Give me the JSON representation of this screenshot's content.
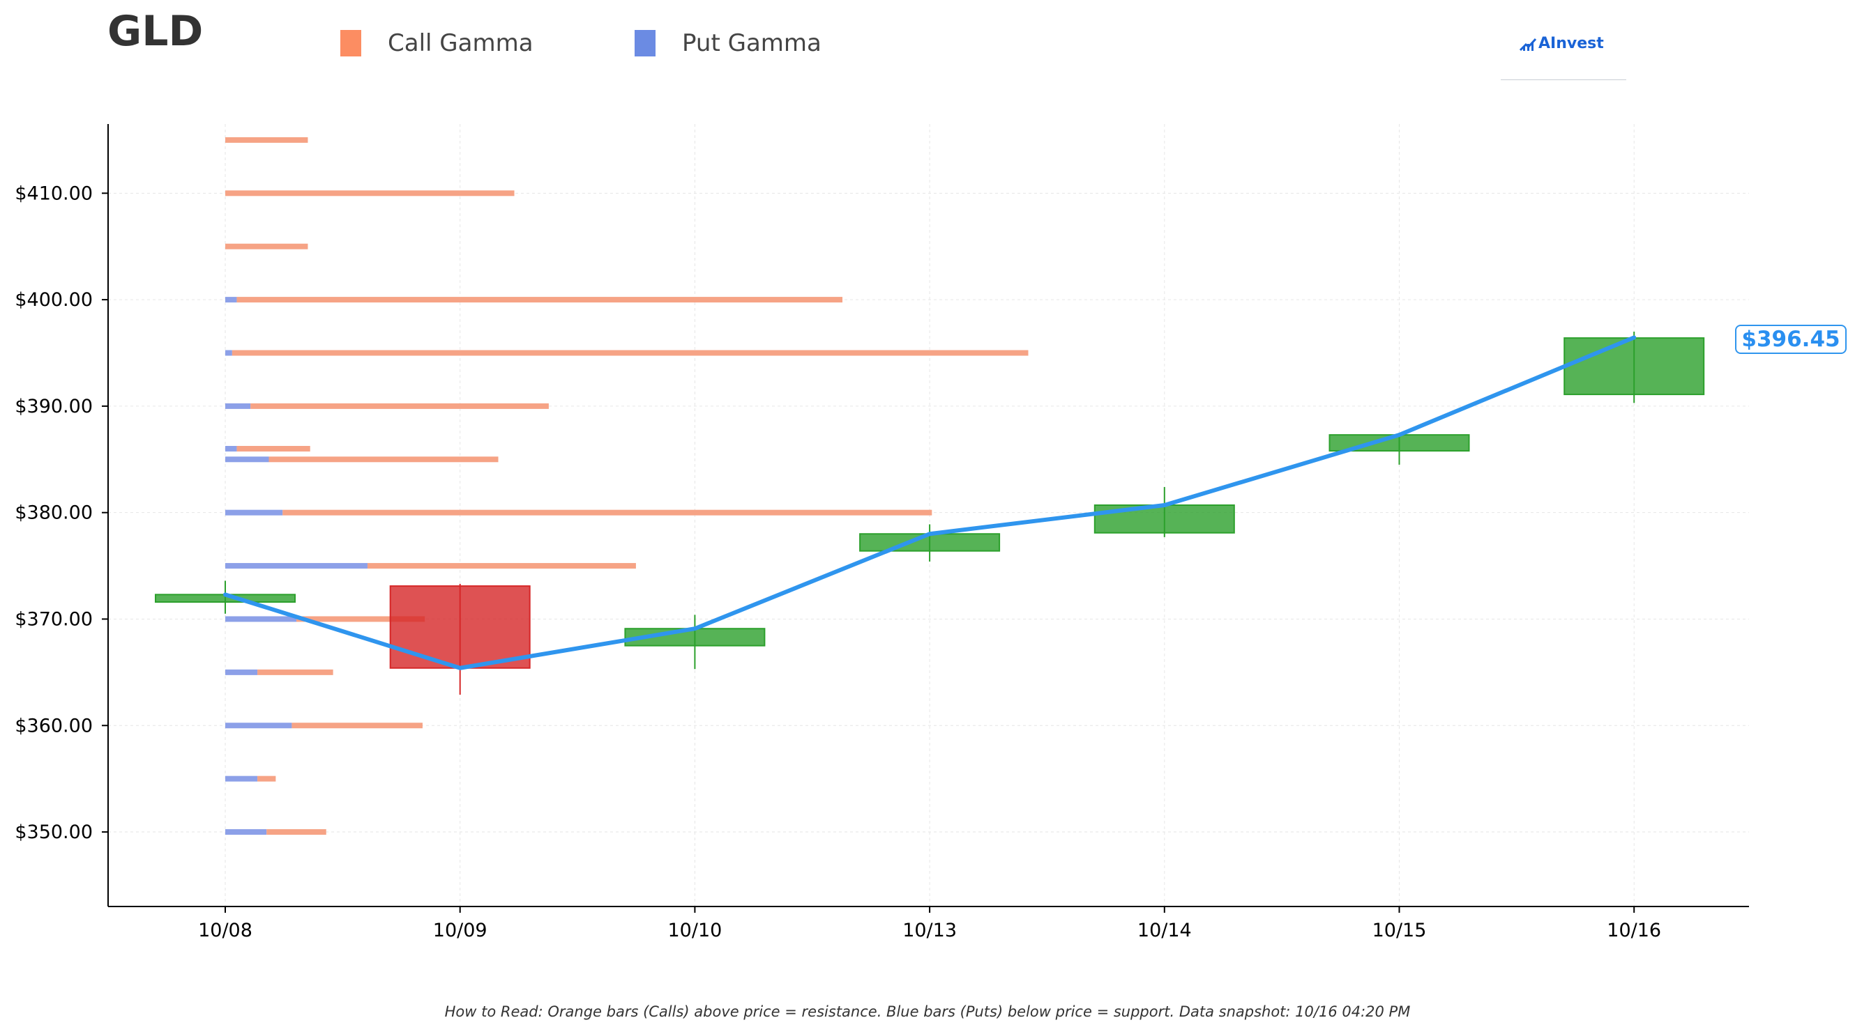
{
  "header": {
    "ticker": "GLD",
    "legend": [
      {
        "label": "Call Gamma",
        "color": "#fc8d62"
      },
      {
        "label": "Put Gamma",
        "color": "#6b8be3"
      }
    ],
    "brand": "AInvest"
  },
  "footnote": "How to Read: Orange bars (Calls) above price = resistance. Blue bars (Puts) below price = support. Data snapshot: 10/16 04:20 PM",
  "current_price_label": "$396.45",
  "colors": {
    "up": "#2ca02c",
    "down": "#d62728",
    "line": "#2f95ee",
    "call": "#f6a385",
    "put": "#8ca0e8"
  },
  "chart_data": {
    "type": "candlestick",
    "title": "GLD",
    "ylim": [
      343.0,
      416.5
    ],
    "ytick_values": [
      350,
      360,
      370,
      380,
      390,
      400,
      410
    ],
    "ytick_labels": [
      "$350.00",
      "$360.00",
      "$370.00",
      "$380.00",
      "$390.00",
      "$400.00",
      "$410.00"
    ],
    "categories": [
      "10/08",
      "10/09",
      "10/10",
      "10/13",
      "10/14",
      "10/15",
      "10/16"
    ],
    "candles": [
      {
        "date": "10/08",
        "open": 371.6,
        "high": 373.6,
        "low": 370.5,
        "close": 372.3
      },
      {
        "date": "10/09",
        "open": 373.1,
        "high": 373.3,
        "low": 362.9,
        "close": 365.4
      },
      {
        "date": "10/10",
        "open": 367.5,
        "high": 370.4,
        "low": 365.3,
        "close": 369.1
      },
      {
        "date": "10/13",
        "open": 376.4,
        "high": 378.9,
        "low": 375.4,
        "close": 378.0
      },
      {
        "date": "10/14",
        "open": 378.1,
        "high": 382.4,
        "low": 377.7,
        "close": 380.7
      },
      {
        "date": "10/15",
        "open": 385.8,
        "high": 387.5,
        "low": 384.5,
        "close": 387.3
      },
      {
        "date": "10/16",
        "open": 391.1,
        "high": 397.0,
        "low": 390.3,
        "close": 396.4
      }
    ],
    "close_line": [
      372.3,
      365.4,
      369.1,
      378.0,
      380.7,
      387.3,
      396.45
    ],
    "gamma_strikes": [
      {
        "strike": 415,
        "put": 0.0,
        "call": 0.36
      },
      {
        "strike": 410,
        "put": 0.0,
        "call": 1.26
      },
      {
        "strike": 405,
        "put": 0.0,
        "call": 0.36
      },
      {
        "strike": 400,
        "put": 0.05,
        "call": 2.64
      },
      {
        "strike": 395,
        "put": 0.03,
        "call": 3.47
      },
      {
        "strike": 390,
        "put": 0.11,
        "call": 1.3
      },
      {
        "strike": 386,
        "put": 0.05,
        "call": 0.32
      },
      {
        "strike": 385,
        "put": 0.19,
        "call": 1.0
      },
      {
        "strike": 380,
        "put": 0.25,
        "call": 2.83
      },
      {
        "strike": 375,
        "put": 0.62,
        "call": 1.17
      },
      {
        "strike": 370,
        "put": 0.31,
        "call": 0.56
      },
      {
        "strike": 365,
        "put": 0.14,
        "call": 0.33
      },
      {
        "strike": 360,
        "put": 0.29,
        "call": 0.57
      },
      {
        "strike": 355,
        "put": 0.14,
        "call": 0.08
      },
      {
        "strike": 350,
        "put": 0.18,
        "call": 0.26
      }
    ]
  }
}
